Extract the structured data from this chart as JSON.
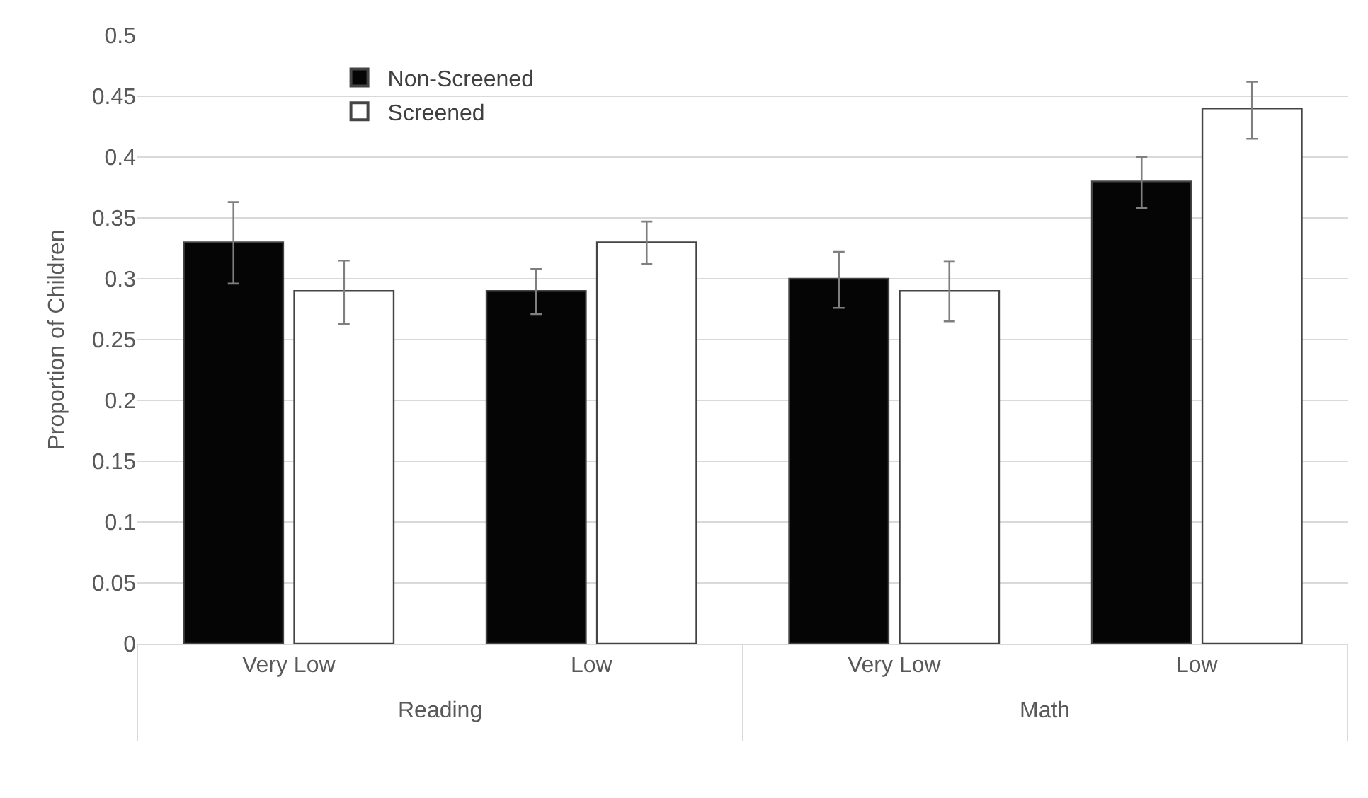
{
  "chart_data": {
    "type": "bar",
    "ylabel": "Proportion of Children",
    "categories": [
      "Very Low",
      "Low",
      "Very Low",
      "Low"
    ],
    "series": [
      {
        "name": "Non-Screened",
        "color": "#050505",
        "values": [
          0.33,
          0.29,
          0.3,
          0.38
        ],
        "errors": [
          [
            0.296,
            0.363
          ],
          [
            0.271,
            0.308
          ],
          [
            0.276,
            0.322
          ],
          [
            0.358,
            0.4
          ]
        ]
      },
      {
        "name": "Screened",
        "color": "#ffffff",
        "values": [
          0.29,
          0.33,
          0.29,
          0.44
        ],
        "errors": [
          [
            0.263,
            0.315
          ],
          [
            0.312,
            0.347
          ],
          [
            0.265,
            0.314
          ],
          [
            0.415,
            0.462
          ]
        ]
      }
    ],
    "annotations": [
      "Reading",
      "Math"
    ],
    "ylim": [
      0,
      0.5
    ],
    "yticks": [
      0,
      0.05,
      0.1,
      0.15,
      0.2,
      0.25,
      0.3,
      0.35,
      0.4,
      0.45,
      0.5
    ],
    "grid": "y",
    "legend": "top left"
  }
}
